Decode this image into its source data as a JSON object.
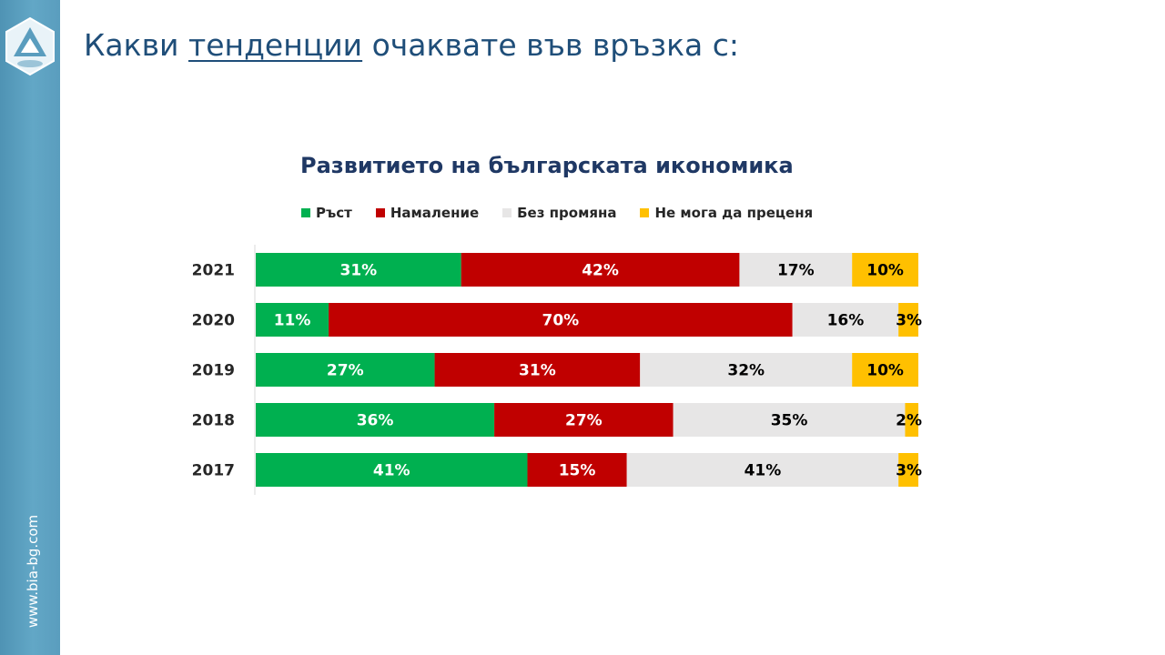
{
  "slide": {
    "title_before": "Какви ",
    "title_underlined": "тенденции",
    "title_after": " очаквате във връзка с:",
    "site_url": "www.bia-bg.com"
  },
  "chart_data": {
    "type": "bar",
    "orientation": "horizontal",
    "stacked": true,
    "title": "Развитието на българската икономика",
    "categories": [
      "2021",
      "2020",
      "2019",
      "2018",
      "2017"
    ],
    "series": [
      {
        "name": "Ръст",
        "color": "#00b050",
        "values": [
          31,
          11,
          27,
          36,
          41
        ],
        "label_color": "#ffffff"
      },
      {
        "name": "Намаление",
        "color": "#c00000",
        "values": [
          42,
          70,
          31,
          27,
          15
        ],
        "label_color": "#ffffff"
      },
      {
        "name": "Без промяна",
        "color": "#e7e6e6",
        "values": [
          17,
          16,
          32,
          35,
          41
        ],
        "label_color": "#000000"
      },
      {
        "name": "Не мога да преценя",
        "color": "#ffc000",
        "values": [
          10,
          3,
          10,
          2,
          3
        ],
        "label_color": "#000000"
      }
    ],
    "value_suffix": "%",
    "legend_position": "top",
    "grid": false
  }
}
